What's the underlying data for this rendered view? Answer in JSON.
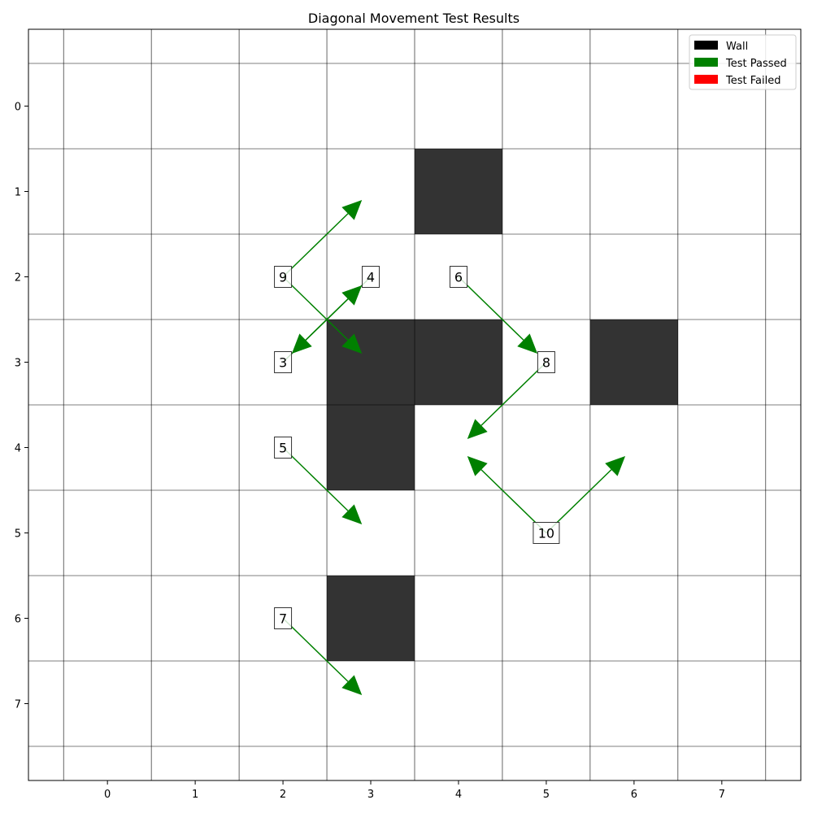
{
  "chart_data": {
    "type": "heatmap",
    "title": "Diagonal Movement Test Results",
    "xlabel": "",
    "ylabel": "",
    "x_ticks": [
      "0",
      "1",
      "2",
      "3",
      "4",
      "5",
      "6",
      "7"
    ],
    "y_ticks": [
      "0",
      "1",
      "2",
      "3",
      "4",
      "5",
      "6",
      "7"
    ],
    "grid": true,
    "xlim": [
      -0.9,
      7.9
    ],
    "ylim": [
      7.9,
      -0.9
    ],
    "walls": [
      {
        "x": 4,
        "y": 1
      },
      {
        "x": 3,
        "y": 3
      },
      {
        "x": 4,
        "y": 3
      },
      {
        "x": 6,
        "y": 3
      },
      {
        "x": 3,
        "y": 4
      },
      {
        "x": 3,
        "y": 6
      }
    ],
    "tests": [
      {
        "label": "3",
        "from": [
          2,
          3
        ],
        "to": [
          3,
          2
        ],
        "status": "passed"
      },
      {
        "label": "4",
        "from": [
          3,
          2
        ],
        "to": [
          2,
          3
        ],
        "status": "passed"
      },
      {
        "label": "5",
        "from": [
          2,
          4
        ],
        "to": [
          3,
          5
        ],
        "status": "passed"
      },
      {
        "label": "6",
        "from": [
          4,
          2
        ],
        "to": [
          5,
          3
        ],
        "status": "passed"
      },
      {
        "label": "7",
        "from": [
          2,
          6
        ],
        "to": [
          3,
          7
        ],
        "status": "passed"
      },
      {
        "label": "8",
        "from": [
          5,
          3
        ],
        "to": [
          4,
          4
        ],
        "status": "passed"
      },
      {
        "label": "9",
        "from": [
          2,
          2
        ],
        "to": [
          3,
          1
        ],
        "status": "passed"
      },
      {
        "label": "9",
        "from": [
          2,
          2
        ],
        "to": [
          3,
          3
        ],
        "status": "passed"
      },
      {
        "label": "10",
        "from": [
          5,
          5
        ],
        "to": [
          4,
          4
        ],
        "status": "passed"
      },
      {
        "label": "10",
        "from": [
          5,
          5
        ],
        "to": [
          6,
          4
        ],
        "status": "passed"
      }
    ],
    "legend": {
      "position": "top-right",
      "entries": [
        {
          "label": "Wall",
          "color": "#000000"
        },
        {
          "label": "Test Passed",
          "color": "#008000"
        },
        {
          "label": "Test Failed",
          "color": "#ff0000"
        }
      ]
    },
    "colors": {
      "wall": "#333333",
      "passed": "#008000",
      "failed": "#ff0000"
    }
  }
}
